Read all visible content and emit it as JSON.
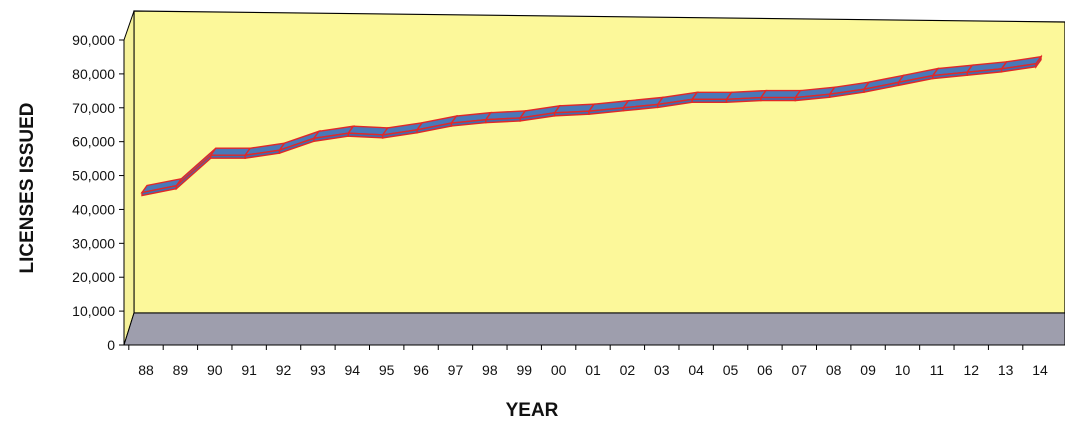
{
  "chart_data": {
    "type": "line",
    "title": "",
    "xlabel": "YEAR",
    "ylabel": "LICENSES ISSUED",
    "ylim": [
      0,
      90000
    ],
    "y_ticks": [
      "0",
      "10,000",
      "20,000",
      "30,000",
      "40,000",
      "50,000",
      "60,000",
      "70,000",
      "80,000",
      "90,000"
    ],
    "y_tick_values": [
      0,
      10000,
      20000,
      30000,
      40000,
      50000,
      60000,
      70000,
      80000,
      90000
    ],
    "categories": [
      "88",
      "89",
      "90",
      "91",
      "92",
      "93",
      "94",
      "95",
      "96",
      "97",
      "98",
      "99",
      "00",
      "01",
      "02",
      "03",
      "04",
      "05",
      "06",
      "07",
      "08",
      "09",
      "10",
      "11",
      "12",
      "13",
      "14"
    ],
    "series": [
      {
        "values": [
          45000,
          47000,
          56000,
          56000,
          57500,
          61000,
          62500,
          62000,
          63500,
          65500,
          66500,
          67000,
          68500,
          69000,
          70000,
          71000,
          72500,
          72500,
          73000,
          73000,
          74000,
          75500,
          77500,
          79500,
          80500,
          81500,
          83000
        ]
      }
    ],
    "grid": false,
    "legend": "none",
    "colors": {
      "plot_wall": "#FCF89A",
      "floor": "#9E9EAD",
      "ribbon_top": "#4A78B8",
      "ribbon_front": "#3F6DB0",
      "ribbon_edge": "#E02828"
    }
  }
}
